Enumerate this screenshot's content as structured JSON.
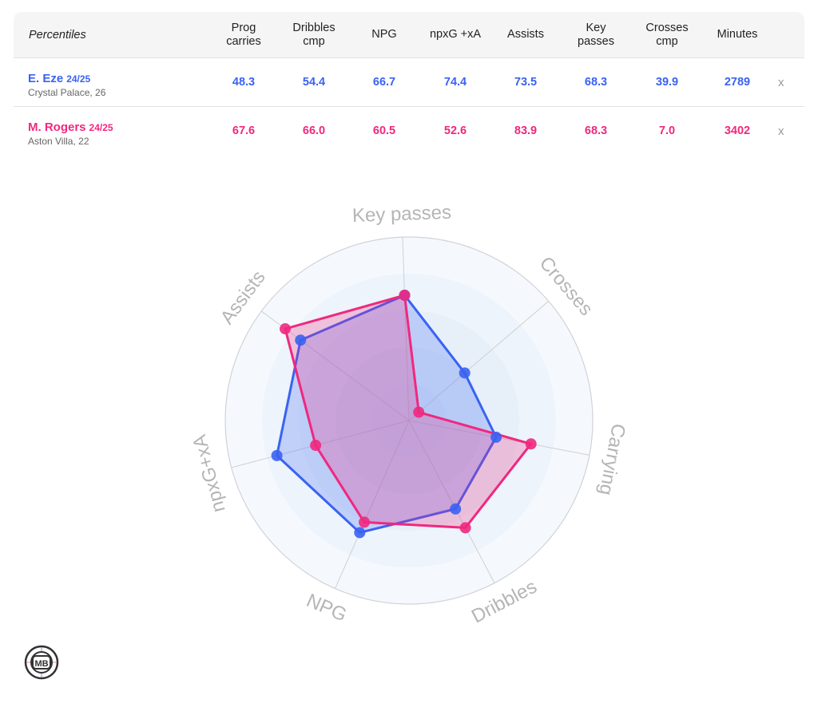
{
  "table": {
    "title": "Percentiles",
    "columns": [
      "Prog carries",
      "Dribbles cmp",
      "NPG",
      "npxG +xA",
      "Assists",
      "Key passes",
      "Crosses cmp",
      "Minutes"
    ],
    "column_lines": [
      [
        "Prog",
        "carries"
      ],
      [
        "Dribbles",
        "cmp"
      ],
      [
        "NPG"
      ],
      [
        "npxG +xA"
      ],
      [
        "Assists"
      ],
      [
        "Key",
        "passes"
      ],
      [
        "Crosses",
        "cmp"
      ],
      [
        "Minutes"
      ]
    ],
    "rows": [
      {
        "name": "E. Eze",
        "season": "24/25",
        "club": "Crystal Palace, 26",
        "color": "#3a62f2",
        "values": [
          "48.3",
          "54.4",
          "66.7",
          "74.4",
          "73.5",
          "68.3",
          "39.9",
          "2789"
        ],
        "remove": "x"
      },
      {
        "name": "M. Rogers",
        "season": "24/25",
        "club": "Aston Villa, 22",
        "color": "#f0287f",
        "values": [
          "67.6",
          "66.0",
          "60.5",
          "52.6",
          "83.9",
          "68.3",
          "7.0",
          "3402"
        ],
        "remove": "x"
      }
    ]
  },
  "chart_data": {
    "type": "radar",
    "axes": [
      "Key passes",
      "Crosses",
      "Carrying",
      "Dribbles",
      "NPG",
      "npxG+xA",
      "Assists"
    ],
    "range": [
      0,
      100
    ],
    "series": [
      {
        "name": "E. Eze",
        "color": "#3a62f2",
        "values": [
          68.3,
          39.9,
          48.3,
          54.4,
          66.7,
          74.4,
          73.5
        ]
      },
      {
        "name": "M. Rogers",
        "color": "#f0287f",
        "values": [
          68.3,
          7.0,
          67.6,
          66.0,
          60.5,
          52.6,
          83.9
        ]
      }
    ]
  },
  "logo": {
    "text": "MB"
  }
}
